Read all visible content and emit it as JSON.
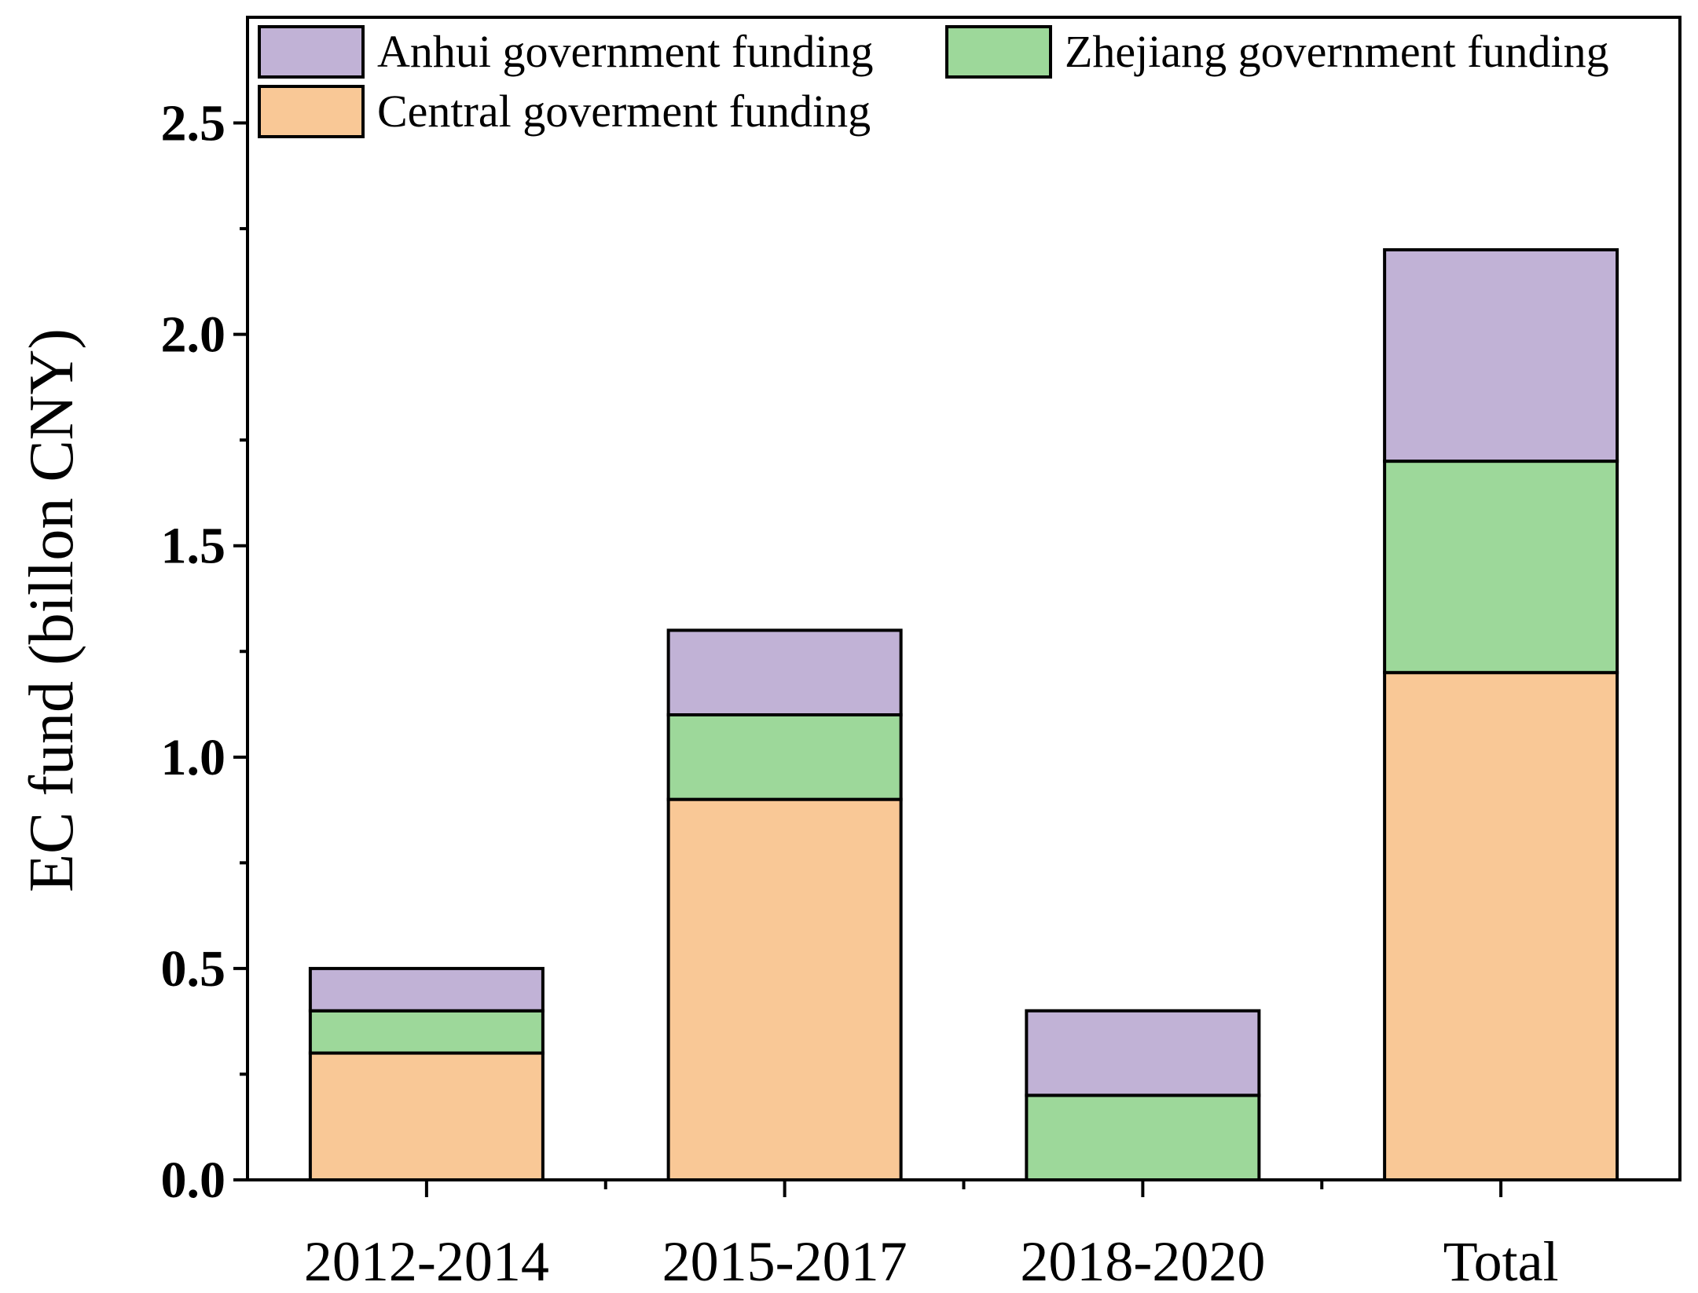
{
  "chart_data": {
    "type": "bar",
    "stacked": true,
    "title": "",
    "xlabel": "",
    "ylabel": "EC fund (billon CNY)",
    "ylim": [
      0,
      2.75
    ],
    "yticks": [
      "0.0",
      "0.5",
      "1.0",
      "1.5",
      "2.0",
      "2.5"
    ],
    "categories": [
      "2012-2014",
      "2015-2017",
      "2018-2020",
      "Total"
    ],
    "series": [
      {
        "name": "Central goverment funding",
        "color": "#f9c896",
        "values": [
          0.3,
          0.9,
          0.0,
          1.2
        ]
      },
      {
        "name": "Zhejiang government funding",
        "color": "#9dd89a",
        "values": [
          0.1,
          0.2,
          0.2,
          0.5
        ]
      },
      {
        "name": "Anhui government funding",
        "color": "#c1b2d6",
        "values": [
          0.1,
          0.2,
          0.2,
          0.5
        ]
      }
    ],
    "legend": {
      "position": "top-left",
      "order": [
        "Anhui government funding",
        "Zhejiang government funding",
        "Central goverment funding"
      ]
    },
    "grid": false
  }
}
